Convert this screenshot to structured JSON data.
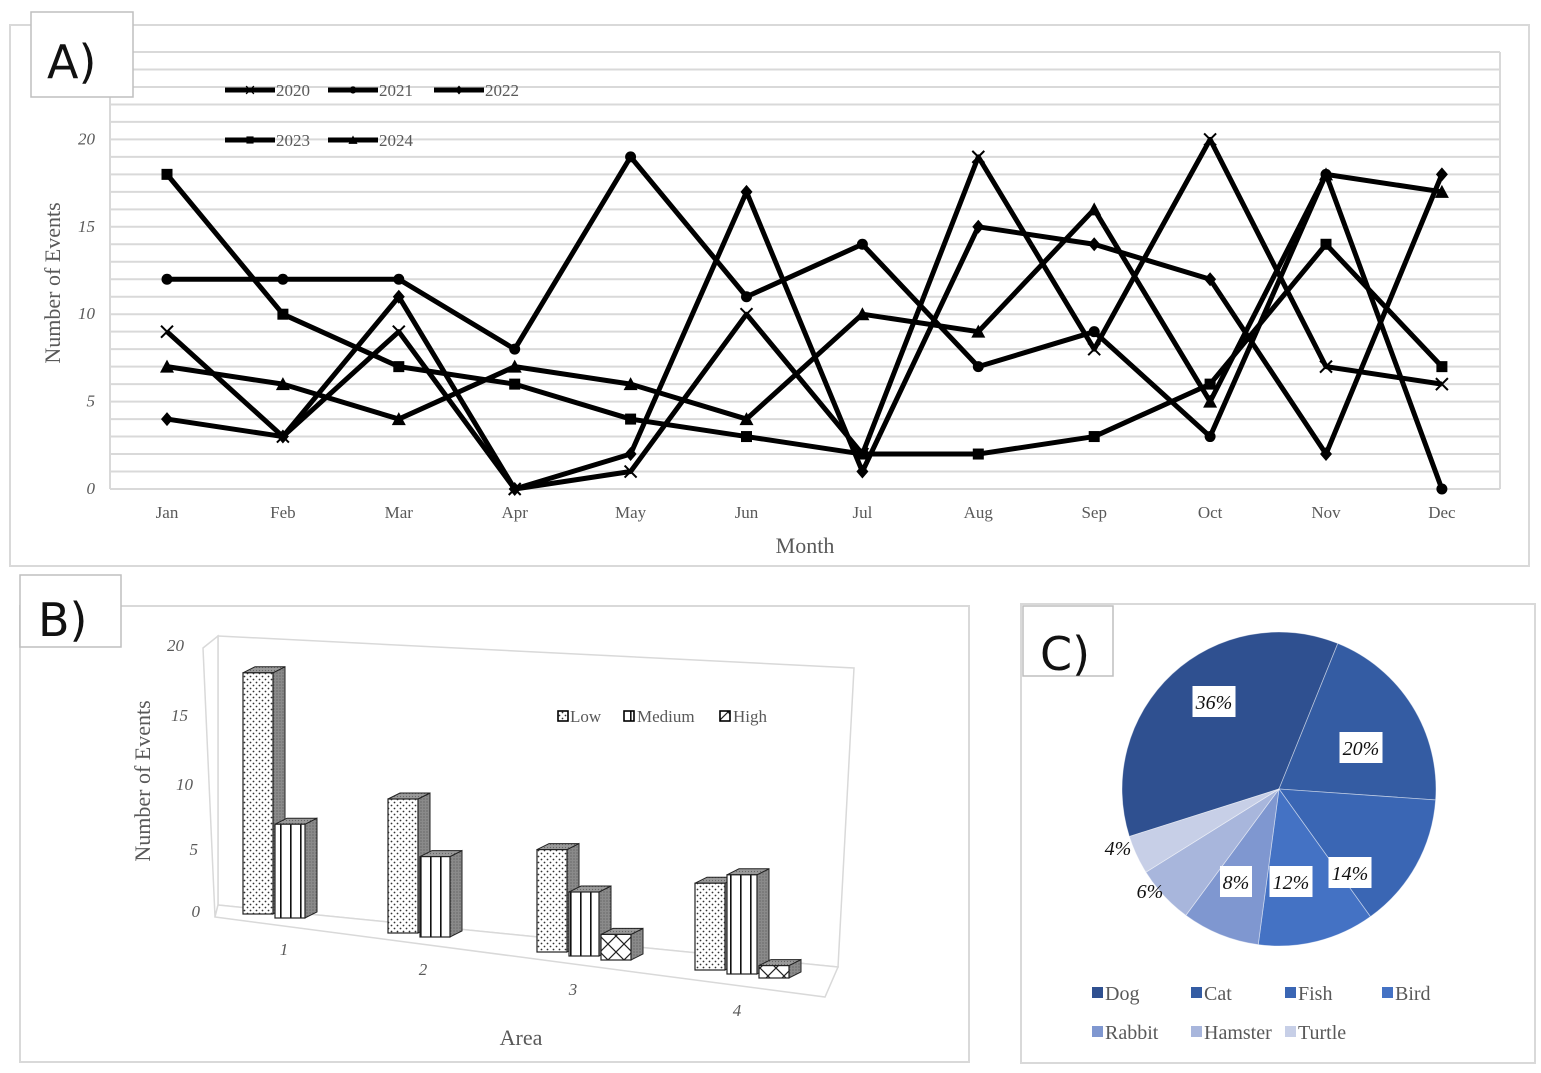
{
  "panels": {
    "a_label": "A)",
    "b_label": "B)",
    "c_label": "C)"
  },
  "chart_data": [
    {
      "type": "line",
      "id": "A",
      "xlabel": "Month",
      "ylabel": "Number of Events",
      "categories": [
        "Jan",
        "Feb",
        "Mar",
        "Apr",
        "May",
        "Jun",
        "Jul",
        "Aug",
        "Sep",
        "Oct",
        "Nov",
        "Dec"
      ],
      "yticks": [
        "0",
        "5",
        "10",
        "15",
        "20"
      ],
      "ylim": [
        0,
        25
      ],
      "grid": true,
      "legend_position": "top-left",
      "series": [
        {
          "name": "2020",
          "marker": "x",
          "values": [
            9,
            3,
            9,
            0,
            1,
            10,
            2,
            19,
            8,
            20,
            7,
            6
          ]
        },
        {
          "name": "2021",
          "marker": "circle",
          "values": [
            12,
            12,
            12,
            8,
            19,
            11,
            14,
            7,
            9,
            3,
            18,
            0
          ]
        },
        {
          "name": "2022",
          "marker": "diamond",
          "values": [
            4,
            3,
            11,
            0,
            2,
            17,
            1,
            15,
            14,
            12,
            2,
            18
          ]
        },
        {
          "name": "2023",
          "marker": "square",
          "values": [
            18,
            10,
            7,
            6,
            4,
            3,
            2,
            2,
            3,
            6,
            14,
            7
          ]
        },
        {
          "name": "2024",
          "marker": "triangle",
          "values": [
            7,
            6,
            4,
            7,
            6,
            4,
            10,
            9,
            16,
            5,
            18,
            17
          ]
        }
      ],
      "line_color": "#000000"
    },
    {
      "type": "bar",
      "id": "B",
      "style": "3d-clustered",
      "xlabel": "Area",
      "ylabel": "Number of Events",
      "categories": [
        "1",
        "2",
        "3",
        "4"
      ],
      "yticks": [
        "0",
        "5",
        "10",
        "15",
        "20"
      ],
      "ylim": [
        0,
        20
      ],
      "legend_position": "top-right",
      "series": [
        {
          "name": "Low",
          "pattern": "dots",
          "values": [
            18,
            10,
            8,
            7
          ]
        },
        {
          "name": "Medium",
          "pattern": "vertical-stripes",
          "values": [
            7,
            6,
            5,
            8
          ]
        },
        {
          "name": "High",
          "pattern": "diagonal-cross",
          "values": [
            0,
            0,
            2,
            1
          ]
        }
      ]
    },
    {
      "type": "pie",
      "id": "C",
      "legend_position": "bottom",
      "slices": [
        {
          "name": "Dog",
          "value": 36,
          "label": "36%",
          "color": "#2F5090"
        },
        {
          "name": "Cat",
          "value": 20,
          "label": "20%",
          "color": "#345CA3"
        },
        {
          "name": "Fish",
          "value": 14,
          "label": "14%",
          "color": "#3A66B4"
        },
        {
          "name": "Bird",
          "value": 12,
          "label": "12%",
          "color": "#4472C4"
        },
        {
          "name": "Rabbit",
          "value": 8,
          "label": "8%",
          "color": "#7F97D0"
        },
        {
          "name": "Hamster",
          "value": 6,
          "label": "6%",
          "color": "#A8B6DC"
        },
        {
          "name": "Turtle",
          "value": 4,
          "label": "4%",
          "color": "#C7CFE7"
        }
      ]
    }
  ]
}
